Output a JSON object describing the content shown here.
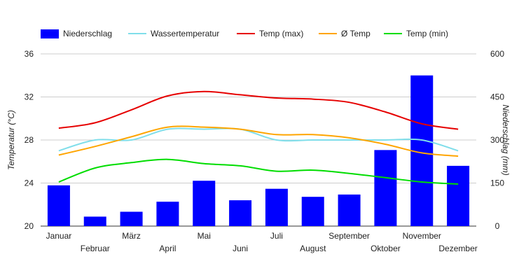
{
  "chart_data": {
    "type": "bar",
    "categories": [
      "Januar",
      "Februar",
      "März",
      "April",
      "Mai",
      "Juni",
      "Juli",
      "August",
      "September",
      "Oktober",
      "November",
      "Dezember"
    ],
    "legend_placement": "top",
    "grid": true,
    "y_left": {
      "label": "Temperatur (°C)",
      "lim": [
        20,
        36
      ],
      "ticks": [
        20,
        24,
        28,
        32,
        36
      ]
    },
    "y_right": {
      "label": "Niederschlag (mm)",
      "lim": [
        0,
        600
      ],
      "ticks": [
        0,
        150,
        300,
        450,
        600
      ]
    },
    "bars": {
      "name": "Niederschlag",
      "color": "#0000ff",
      "axis": "right",
      "values": [
        142,
        33,
        50,
        85,
        158,
        90,
        130,
        102,
        110,
        265,
        525,
        210
      ]
    },
    "series": [
      {
        "name": "Wassertemperatur",
        "color": "#80deea",
        "axis": "left",
        "values": [
          27.0,
          28.0,
          28.0,
          29.0,
          29.0,
          29.0,
          28.0,
          28.0,
          28.0,
          28.0,
          28.0,
          27.0
        ]
      },
      {
        "name": "Temp (max)",
        "color": "#e60000",
        "axis": "left",
        "values": [
          29.1,
          29.6,
          30.8,
          32.1,
          32.5,
          32.2,
          31.9,
          31.8,
          31.5,
          30.6,
          29.5,
          29.0
        ]
      },
      {
        "name": "Ø Temp",
        "color": "#ffa500",
        "axis": "left",
        "values": [
          26.6,
          27.4,
          28.3,
          29.2,
          29.2,
          29.0,
          28.5,
          28.5,
          28.2,
          27.6,
          26.8,
          26.5
        ]
      },
      {
        "name": "Temp (min)",
        "color": "#00dd00",
        "axis": "left",
        "values": [
          24.1,
          25.4,
          25.9,
          26.2,
          25.8,
          25.6,
          25.1,
          25.2,
          24.9,
          24.5,
          24.1,
          23.9
        ]
      }
    ]
  }
}
